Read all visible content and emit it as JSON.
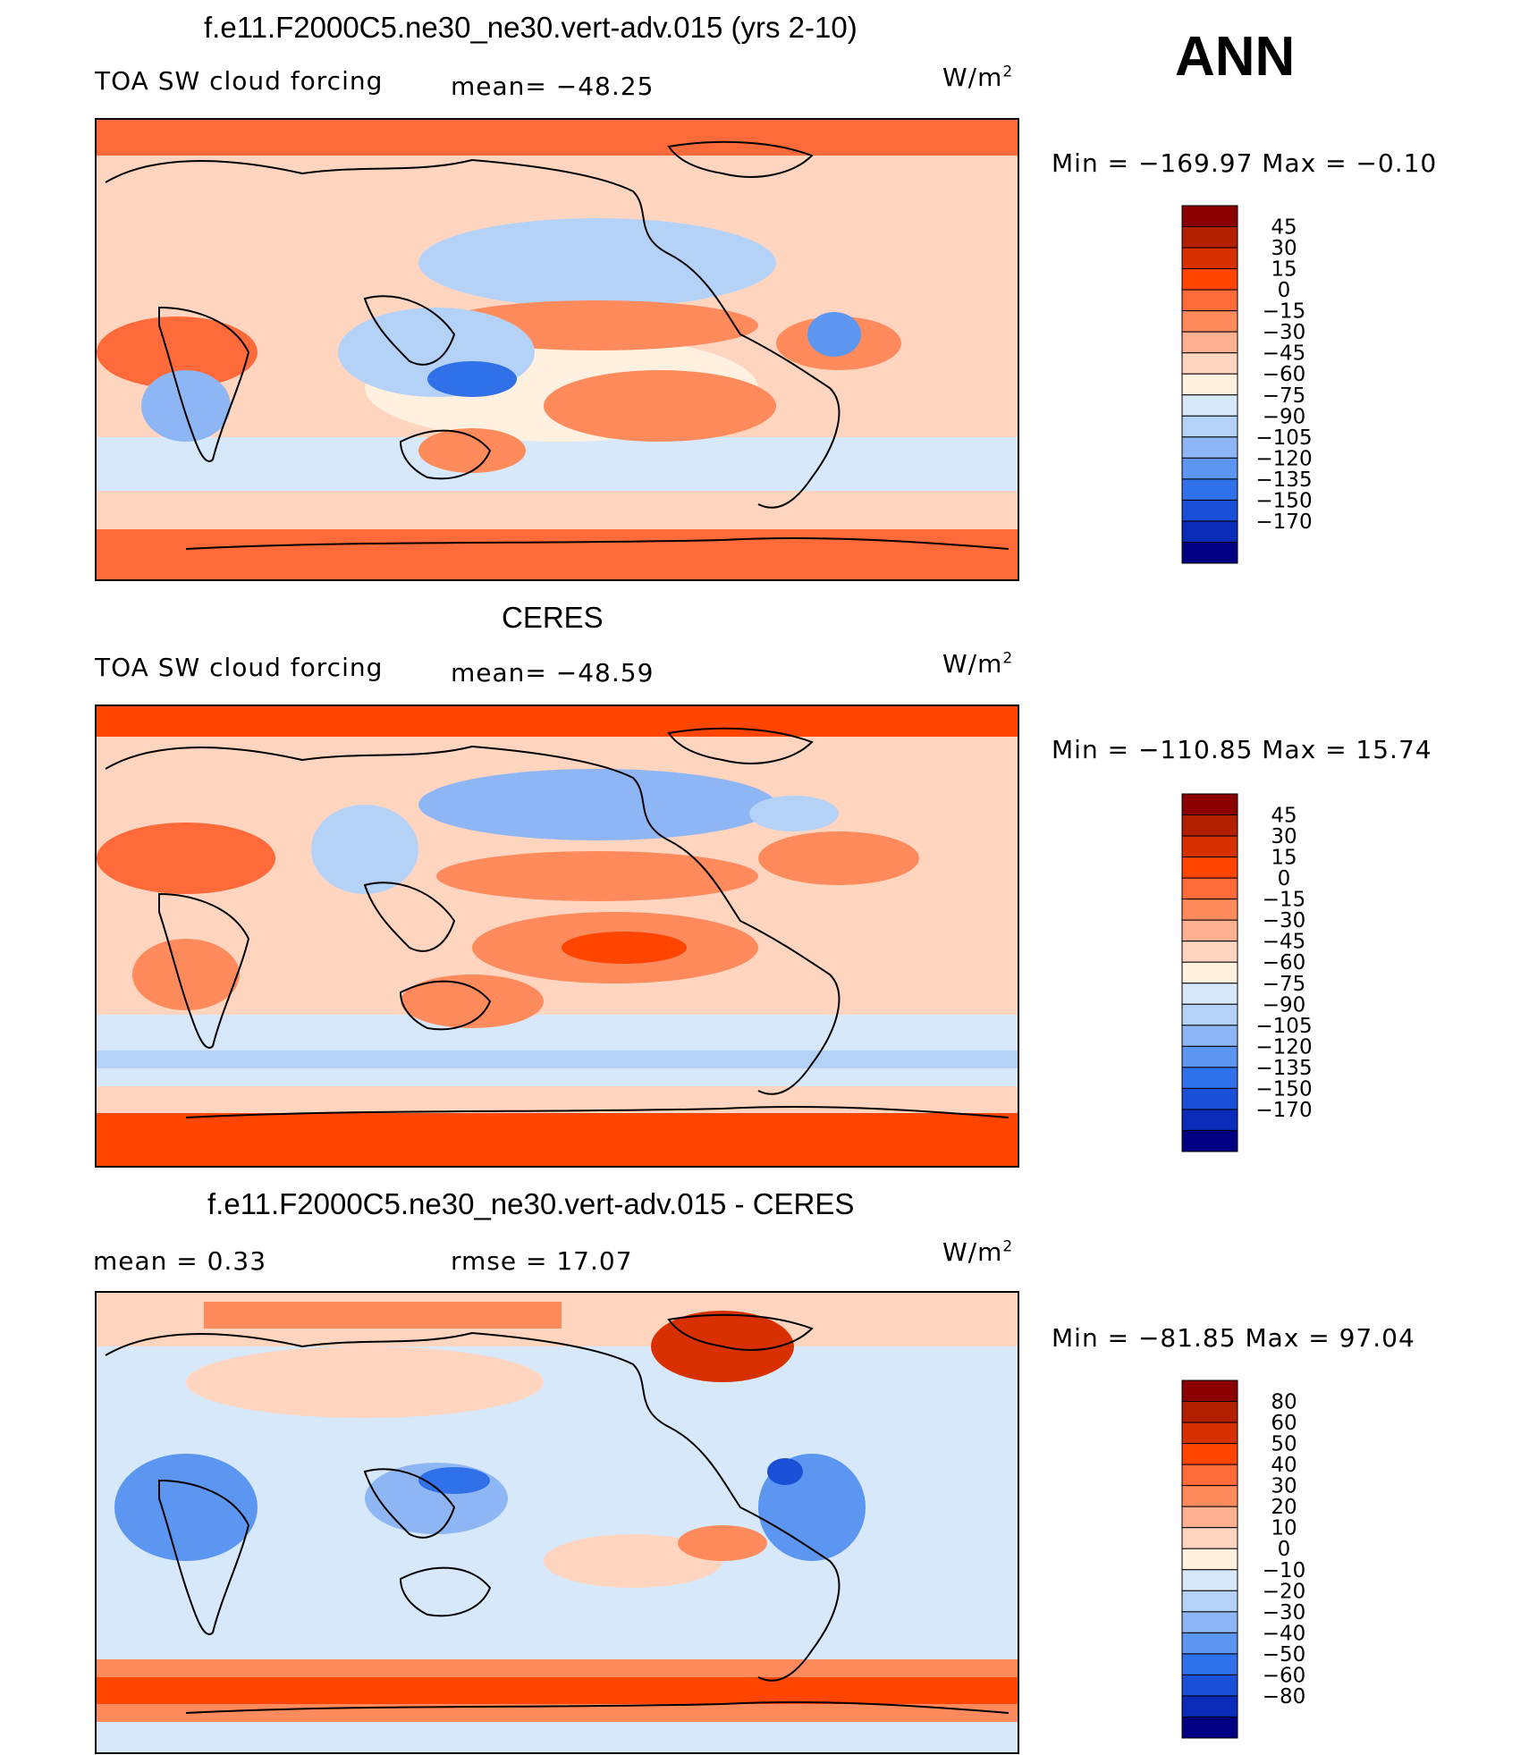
{
  "header": {
    "season": "ANN"
  },
  "panels": [
    {
      "title": "f.e11.F2000C5.ne30_ne30.vert-adv.015 (yrs 2-10)",
      "left_label": "TOA SW cloud forcing",
      "center_label": "mean=  −48.25",
      "units": "W/m",
      "units_sup": "2",
      "minmax": "Min  =  −169.97  Max  =    −0.10",
      "colorbar": {
        "labels": [
          "45",
          "30",
          "15",
          "0",
          "−15",
          "−30",
          "−45",
          "−60",
          "−75",
          "−90",
          "−105",
          "−120",
          "−135",
          "−150",
          "−170"
        ],
        "colors": [
          "#8b0000",
          "#b22000",
          "#d83000",
          "#ff4500",
          "#ff6a3a",
          "#ff8a5c",
          "#ffb090",
          "#ffd5c0",
          "#fff0e0",
          "#d6e8fa",
          "#b4d2f8",
          "#8eb6f5",
          "#5d96f0",
          "#3070e8",
          "#1a4fd8",
          "#0a2cb8",
          "#000080"
        ]
      },
      "notes": {
        "eq_trop": "model",
        "lat": "model"
      }
    },
    {
      "title": "CERES",
      "left_label": "TOA SW cloud forcing",
      "center_label": "mean=  −48.59",
      "units": "W/m",
      "units_sup": "2",
      "minmax": "Min  =  −110.85  Max  =    15.74",
      "colorbar": {
        "labels": [
          "45",
          "30",
          "15",
          "0",
          "−15",
          "−30",
          "−45",
          "−60",
          "−75",
          "−90",
          "−105",
          "−120",
          "−135",
          "−150",
          "−170"
        ],
        "colors": [
          "#8b0000",
          "#b22000",
          "#d83000",
          "#ff4500",
          "#ff6a3a",
          "#ff8a5c",
          "#ffb090",
          "#ffd5c0",
          "#fff0e0",
          "#d6e8fa",
          "#b4d2f8",
          "#8eb6f5",
          "#5d96f0",
          "#3070e8",
          "#1a4fd8",
          "#0a2cb8",
          "#000080"
        ]
      }
    },
    {
      "title": "f.e11.F2000C5.ne30_ne30.vert-adv.015 - CERES",
      "left_label": "mean  =     0.33",
      "center_label": "rmse  =    17.07",
      "units": "W/m",
      "units_sup": "2",
      "minmax": "Min  =  −81.85  Max  =    97.04",
      "colorbar": {
        "labels": [
          "80",
          "60",
          "50",
          "40",
          "30",
          "20",
          "10",
          "0",
          "−10",
          "−20",
          "−30",
          "−40",
          "−50",
          "−60",
          "−80"
        ],
        "colors": [
          "#8b0000",
          "#b22000",
          "#d83000",
          "#ff4500",
          "#ff6a3a",
          "#ff8a5c",
          "#ffb090",
          "#ffd5c0",
          "#fff0e0",
          "#d6e8fa",
          "#b4d2f8",
          "#8eb6f5",
          "#5d96f0",
          "#3070e8",
          "#1a4fd8",
          "#0a2cb8",
          "#000080"
        ]
      }
    }
  ],
  "chart_data": [
    {
      "type": "heatmap",
      "title": "f.e11.F2000C5.ne30_ne30.vert-adv.015 (yrs 2-10)",
      "variable": "TOA SW cloud forcing",
      "units": "W/m2",
      "mean": -48.25,
      "min": -169.97,
      "max": -0.1,
      "levels": [
        -170,
        -150,
        -135,
        -120,
        -105,
        -90,
        -75,
        -60,
        -45,
        -30,
        -15,
        0,
        15,
        30,
        45
      ],
      "xrange": [
        0,
        360
      ],
      "yrange": [
        -90,
        90
      ]
    },
    {
      "type": "heatmap",
      "title": "CERES",
      "variable": "TOA SW cloud forcing",
      "units": "W/m2",
      "mean": -48.59,
      "min": -110.85,
      "max": 15.74,
      "levels": [
        -170,
        -150,
        -135,
        -120,
        -105,
        -90,
        -75,
        -60,
        -45,
        -30,
        -15,
        0,
        15,
        30,
        45
      ],
      "xrange": [
        0,
        360
      ],
      "yrange": [
        -90,
        90
      ]
    },
    {
      "type": "heatmap",
      "title": "f.e11.F2000C5.ne30_ne30.vert-adv.015 - CERES",
      "units": "W/m2",
      "mean": 0.33,
      "rmse": 17.07,
      "min": -81.85,
      "max": 97.04,
      "levels": [
        -80,
        -60,
        -50,
        -40,
        -30,
        -20,
        -10,
        0,
        10,
        20,
        30,
        40,
        50,
        60,
        80
      ],
      "xrange": [
        0,
        360
      ],
      "yrange": [
        -90,
        90
      ]
    }
  ]
}
